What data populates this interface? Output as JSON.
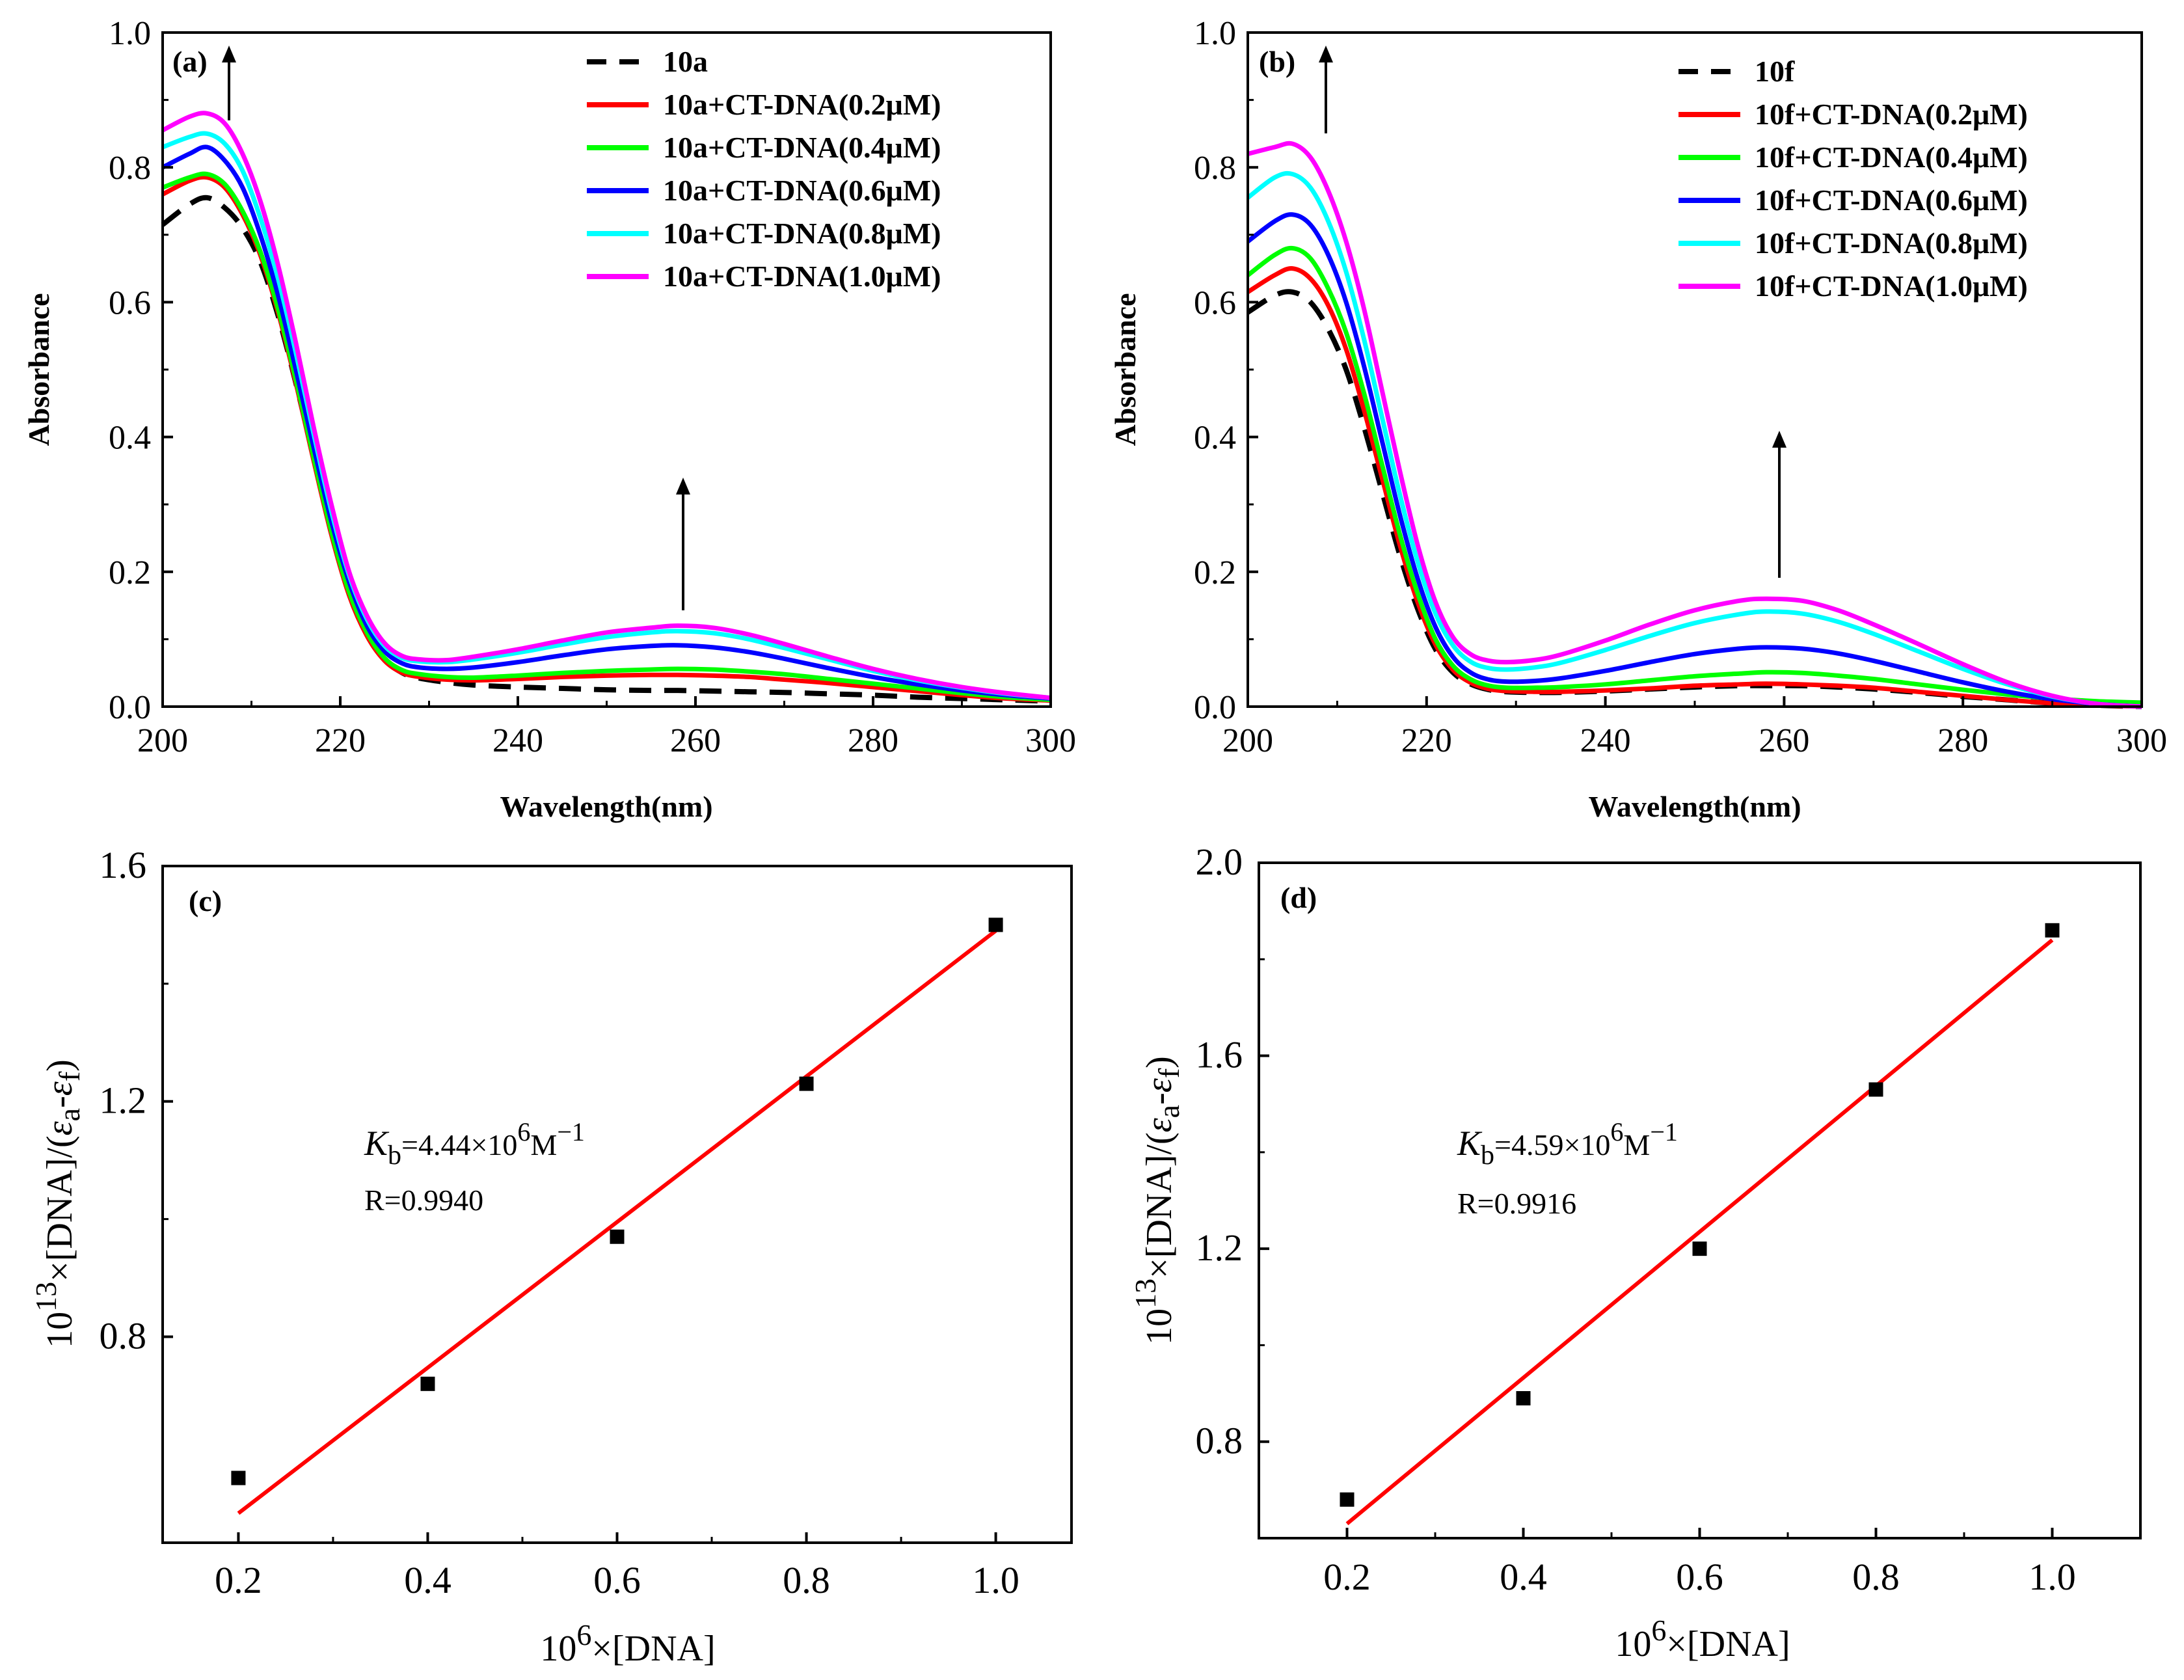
{
  "chart_data": [
    {
      "id": "a",
      "type": "line",
      "panel_label": "(a)",
      "xlabel": "Wavelength(nm)",
      "ylabel": "Absorbance",
      "xlim": [
        200,
        300
      ],
      "ylim": [
        0,
        1.0
      ],
      "xticks": [
        "200",
        "220",
        "240",
        "260",
        "280",
        "300"
      ],
      "yticks": [
        "0.0",
        "0.2",
        "0.4",
        "0.6",
        "0.8",
        "1.0"
      ],
      "legend_position": "top-right",
      "x": [
        200,
        203,
        205,
        207,
        209,
        211,
        213,
        215,
        217,
        219,
        221,
        223,
        225,
        227,
        229,
        232,
        235,
        240,
        245,
        250,
        255,
        258,
        262,
        266,
        270,
        275,
        280,
        285,
        290,
        295,
        300
      ],
      "series": [
        {
          "name": "10a",
          "color": "#000000",
          "dashed": true,
          "values": [
            0.715,
            0.745,
            0.755,
            0.74,
            0.71,
            0.66,
            0.58,
            0.48,
            0.37,
            0.26,
            0.17,
            0.11,
            0.07,
            0.05,
            0.042,
            0.036,
            0.032,
            0.029,
            0.027,
            0.025,
            0.024,
            0.024,
            0.023,
            0.022,
            0.021,
            0.019,
            0.017,
            0.014,
            0.012,
            0.01,
            0.008
          ]
        },
        {
          "name": "10a+CT-DNA(0.2μM)",
          "color": "#ff0000",
          "dashed": false,
          "values": [
            0.76,
            0.78,
            0.785,
            0.77,
            0.73,
            0.67,
            0.585,
            0.48,
            0.365,
            0.255,
            0.165,
            0.105,
            0.068,
            0.05,
            0.044,
            0.04,
            0.039,
            0.041,
            0.044,
            0.046,
            0.047,
            0.047,
            0.046,
            0.044,
            0.04,
            0.035,
            0.029,
            0.023,
            0.017,
            0.012,
            0.009
          ]
        },
        {
          "name": "10a+CT-DNA(0.4μM)",
          "color": "#00ff00",
          "dashed": false,
          "values": [
            0.77,
            0.785,
            0.79,
            0.775,
            0.735,
            0.675,
            0.59,
            0.485,
            0.37,
            0.26,
            0.17,
            0.11,
            0.072,
            0.054,
            0.048,
            0.044,
            0.043,
            0.046,
            0.05,
            0.053,
            0.055,
            0.056,
            0.055,
            0.052,
            0.048,
            0.041,
            0.034,
            0.027,
            0.02,
            0.014,
            0.01
          ]
        },
        {
          "name": "10a+CT-DNA(0.6μM)",
          "color": "#0000ff",
          "dashed": false,
          "values": [
            0.8,
            0.82,
            0.83,
            0.81,
            0.77,
            0.7,
            0.61,
            0.5,
            0.385,
            0.275,
            0.185,
            0.12,
            0.082,
            0.064,
            0.058,
            0.056,
            0.058,
            0.066,
            0.076,
            0.085,
            0.09,
            0.091,
            0.088,
            0.081,
            0.071,
            0.057,
            0.044,
            0.033,
            0.024,
            0.017,
            0.012
          ]
        },
        {
          "name": "10a+CT-DNA(0.8μM)",
          "color": "#00ffff",
          "dashed": false,
          "values": [
            0.83,
            0.845,
            0.85,
            0.835,
            0.795,
            0.725,
            0.635,
            0.525,
            0.405,
            0.29,
            0.195,
            0.13,
            0.09,
            0.072,
            0.067,
            0.066,
            0.07,
            0.08,
            0.092,
            0.103,
            0.11,
            0.112,
            0.109,
            0.1,
            0.087,
            0.07,
            0.053,
            0.039,
            0.028,
            0.019,
            0.013
          ]
        },
        {
          "name": "10a+CT-DNA(1.0μM)",
          "color": "#ff00ff",
          "dashed": false,
          "values": [
            0.855,
            0.875,
            0.88,
            0.865,
            0.82,
            0.75,
            0.655,
            0.54,
            0.415,
            0.3,
            0.2,
            0.135,
            0.094,
            0.075,
            0.07,
            0.069,
            0.074,
            0.085,
            0.098,
            0.11,
            0.117,
            0.12,
            0.117,
            0.107,
            0.093,
            0.074,
            0.056,
            0.041,
            0.029,
            0.02,
            0.013
          ]
        }
      ]
    },
    {
      "id": "b",
      "type": "line",
      "panel_label": "(b)",
      "xlabel": "Wavelength(nm)",
      "ylabel": "Absorbance",
      "xlim": [
        200,
        300
      ],
      "ylim": [
        0,
        1.0
      ],
      "xticks": [
        "200",
        "220",
        "240",
        "260",
        "280",
        "300"
      ],
      "yticks": [
        "0.0",
        "0.2",
        "0.4",
        "0.6",
        "0.8",
        "1.0"
      ],
      "legend_position": "top-right",
      "x": [
        200,
        203,
        205,
        207,
        209,
        211,
        213,
        215,
        217,
        219,
        221,
        223,
        225,
        227,
        229,
        232,
        235,
        240,
        245,
        250,
        255,
        258,
        262,
        266,
        270,
        275,
        280,
        285,
        290,
        295,
        300
      ],
      "series": [
        {
          "name": "10f",
          "color": "#000000",
          "dashed": true,
          "values": [
            0.585,
            0.61,
            0.615,
            0.6,
            0.56,
            0.5,
            0.415,
            0.32,
            0.225,
            0.145,
            0.085,
            0.05,
            0.033,
            0.025,
            0.022,
            0.021,
            0.021,
            0.023,
            0.026,
            0.029,
            0.031,
            0.031,
            0.031,
            0.029,
            0.026,
            0.021,
            0.015,
            0.01,
            0.005,
            0.002,
            0.0
          ]
        },
        {
          "name": "10f+CT-DNA(0.2μM)",
          "color": "#ff0000",
          "dashed": false,
          "values": [
            0.615,
            0.64,
            0.65,
            0.635,
            0.595,
            0.53,
            0.44,
            0.34,
            0.24,
            0.155,
            0.092,
            0.054,
            0.035,
            0.026,
            0.023,
            0.022,
            0.022,
            0.024,
            0.027,
            0.031,
            0.033,
            0.034,
            0.033,
            0.031,
            0.028,
            0.022,
            0.016,
            0.01,
            0.005,
            0.002,
            0.0
          ]
        },
        {
          "name": "10f+CT-DNA(0.4μM)",
          "color": "#00ff00",
          "dashed": false,
          "values": [
            0.64,
            0.67,
            0.68,
            0.665,
            0.62,
            0.555,
            0.465,
            0.36,
            0.256,
            0.168,
            0.1,
            0.06,
            0.04,
            0.031,
            0.028,
            0.028,
            0.029,
            0.033,
            0.039,
            0.045,
            0.049,
            0.051,
            0.05,
            0.046,
            0.041,
            0.033,
            0.025,
            0.018,
            0.012,
            0.008,
            0.006
          ]
        },
        {
          "name": "10f+CT-DNA(0.6μM)",
          "color": "#0000ff",
          "dashed": false,
          "values": [
            0.69,
            0.72,
            0.73,
            0.715,
            0.67,
            0.6,
            0.505,
            0.395,
            0.285,
            0.19,
            0.118,
            0.073,
            0.05,
            0.04,
            0.037,
            0.038,
            0.042,
            0.053,
            0.066,
            0.078,
            0.086,
            0.088,
            0.086,
            0.079,
            0.068,
            0.052,
            0.036,
            0.022,
            0.011,
            0.004,
            0.0
          ]
        },
        {
          "name": "10f+CT-DNA(0.8μM)",
          "color": "#00ffff",
          "dashed": false,
          "values": [
            0.755,
            0.785,
            0.79,
            0.77,
            0.72,
            0.645,
            0.545,
            0.43,
            0.315,
            0.215,
            0.138,
            0.09,
            0.066,
            0.057,
            0.055,
            0.058,
            0.065,
            0.084,
            0.105,
            0.124,
            0.137,
            0.141,
            0.138,
            0.126,
            0.108,
            0.082,
            0.056,
            0.033,
            0.015,
            0.004,
            0.0
          ]
        },
        {
          "name": "10f+CT-DNA(1.0μM)",
          "color": "#ff00ff",
          "dashed": false,
          "values": [
            0.82,
            0.83,
            0.835,
            0.815,
            0.765,
            0.69,
            0.59,
            0.47,
            0.35,
            0.24,
            0.155,
            0.102,
            0.077,
            0.068,
            0.066,
            0.069,
            0.077,
            0.098,
            0.122,
            0.143,
            0.157,
            0.16,
            0.157,
            0.143,
            0.122,
            0.093,
            0.063,
            0.036,
            0.016,
            0.004,
            0.0
          ]
        }
      ]
    },
    {
      "id": "c",
      "type": "scatter",
      "panel_label": "(c)",
      "xlabel_parts": [
        "10",
        "6",
        "×[DNA]"
      ],
      "ylabel_parts": [
        "10",
        "13",
        "×[DNA]/(",
        "ε",
        "a",
        "-",
        "ε",
        "f",
        ")"
      ],
      "xlim": [
        0.12,
        1.08
      ],
      "ylim": [
        0.45,
        1.6
      ],
      "xticks": [
        "0.2",
        "0.4",
        "0.6",
        "0.8",
        "1.0"
      ],
      "yticks": [
        "0.8",
        "1.2",
        "1.6"
      ],
      "x": [
        0.2,
        0.4,
        0.6,
        0.8,
        1.0
      ],
      "values": [
        0.56,
        0.72,
        0.97,
        1.23,
        1.5
      ],
      "fit_line": {
        "x": [
          0.2,
          1.0
        ],
        "y": [
          0.5,
          1.49
        ],
        "color": "#ff0000"
      },
      "annotation_k": {
        "symbol": "K",
        "sub": "b",
        "eq": "=4.44×10",
        "sup1": "6",
        "unit": "M",
        "sup2": "−1"
      },
      "annotation_r": "R=0.9940"
    },
    {
      "id": "d",
      "type": "scatter",
      "panel_label": "(d)",
      "xlabel_parts": [
        "10",
        "6",
        "×[DNA]"
      ],
      "ylabel_parts": [
        "10",
        "13",
        "×[DNA]/(",
        "ε",
        "a",
        "-",
        "ε",
        "f",
        ")"
      ],
      "xlim": [
        0.1,
        1.1
      ],
      "ylim": [
        0.6,
        2.0
      ],
      "xticks": [
        "0.2",
        "0.4",
        "0.6",
        "0.8",
        "1.0"
      ],
      "yticks": [
        "0.8",
        "1.2",
        "1.6",
        "2.0"
      ],
      "x": [
        0.2,
        0.4,
        0.6,
        0.8,
        1.0
      ],
      "values": [
        0.68,
        0.89,
        1.2,
        1.53,
        1.86
      ],
      "fit_line": {
        "x": [
          0.2,
          1.0
        ],
        "y": [
          0.63,
          1.84
        ],
        "color": "#ff0000"
      },
      "annotation_k": {
        "symbol": "K",
        "sub": "b",
        "eq": "=4.59×10",
        "sup1": "6",
        "unit": "M",
        "sup2": "−1"
      },
      "annotation_r": "R=0.9916"
    }
  ]
}
